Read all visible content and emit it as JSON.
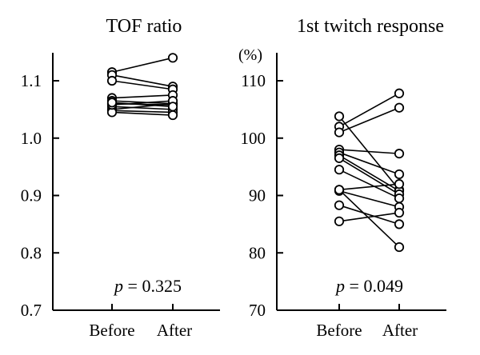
{
  "chart_data": [
    {
      "type": "line",
      "title": "TOF ratio",
      "ylabel": "",
      "ylim": [
        0.7,
        1.15
      ],
      "yticks": [
        "0.7",
        "0.8",
        "0.9",
        "1.0",
        "1.1"
      ],
      "categories": [
        "Before",
        "After"
      ],
      "annotation": {
        "p_symbol": "p",
        "p_rest": " = 0.325"
      },
      "series": [
        {
          "values": [
            1.115,
            1.14
          ]
        },
        {
          "values": [
            1.11,
            1.09
          ]
        },
        {
          "values": [
            1.1,
            1.085
          ]
        },
        {
          "values": [
            1.07,
            1.075
          ]
        },
        {
          "values": [
            1.065,
            1.06
          ]
        },
        {
          "values": [
            1.06,
            1.058
          ]
        },
        {
          "values": [
            1.055,
            1.05
          ]
        },
        {
          "values": [
            1.05,
            1.06
          ]
        },
        {
          "values": [
            1.048,
            1.045
          ]
        },
        {
          "values": [
            1.045,
            1.04
          ]
        },
        {
          "values": [
            1.058,
            1.065
          ]
        },
        {
          "values": [
            1.062,
            1.055
          ]
        }
      ]
    },
    {
      "type": "line",
      "title": "1st twitch response",
      "ylabel": "(%)",
      "ylim": [
        70,
        113
      ],
      "yticks": [
        "70",
        "80",
        "90",
        "100",
        "110"
      ],
      "categories": [
        "Before",
        "After"
      ],
      "annotation": {
        "p_symbol": "p",
        "p_rest": " = 0.049"
      },
      "series": [
        {
          "values": [
            103.8,
            91.0
          ]
        },
        {
          "values": [
            102.0,
            107.8
          ]
        },
        {
          "values": [
            101.0,
            105.3
          ]
        },
        {
          "values": [
            98.0,
            97.3
          ]
        },
        {
          "values": [
            97.5,
            93.7
          ]
        },
        {
          "values": [
            97.0,
            90.8
          ]
        },
        {
          "values": [
            96.5,
            90.2
          ]
        },
        {
          "values": [
            94.5,
            89.5
          ]
        },
        {
          "values": [
            91.0,
            92.0
          ]
        },
        {
          "values": [
            90.8,
            88.0
          ]
        },
        {
          "values": [
            88.3,
            85.0
          ]
        },
        {
          "values": [
            85.5,
            87.0
          ]
        },
        {
          "values": [
            91.0,
            81.0
          ]
        }
      ]
    }
  ]
}
